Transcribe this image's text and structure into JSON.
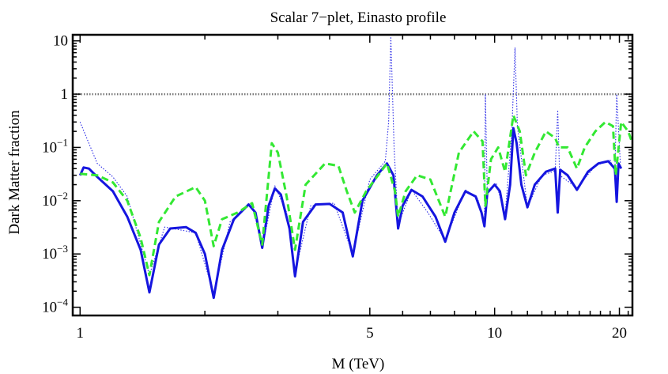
{
  "chart_data": {
    "type": "line",
    "title": "Scalar 7−plet, Einasto profile",
    "xlabel": "M (TeV)",
    "ylabel": "Dark Matter fraction",
    "xscale": "log",
    "yscale": "log",
    "xlim": [
      0.96,
      21.5
    ],
    "ylim": [
      7e-05,
      13
    ],
    "x_ticks": [
      {
        "value": 1,
        "label": "1"
      },
      {
        "value": 5,
        "label": "5"
      },
      {
        "value": 10,
        "label": "10"
      },
      {
        "value": 20,
        "label": "20"
      }
    ],
    "y_ticks": [
      {
        "value": 10,
        "base": "10",
        "exp": ""
      },
      {
        "value": 1,
        "base": "1",
        "exp": ""
      },
      {
        "value": 0.1,
        "base": "10",
        "exp": "−1"
      },
      {
        "value": 0.01,
        "base": "10",
        "exp": "−2"
      },
      {
        "value": 0.001,
        "base": "10",
        "exp": "−3"
      },
      {
        "value": 0.0001,
        "base": "10",
        "exp": "−4"
      }
    ],
    "series": [
      {
        "name": "reference (fraction = 1)",
        "color": "#777777",
        "style": "dotted",
        "points": [
          [
            0.96,
            1
          ],
          [
            21.5,
            1
          ]
        ]
      },
      {
        "name": "dotted blue",
        "color": "#2a2ae6",
        "style": "dotted",
        "points": [
          [
            1.0,
            0.3
          ],
          [
            1.1,
            0.05
          ],
          [
            1.2,
            0.028
          ],
          [
            1.3,
            0.012
          ],
          [
            1.47,
            0.0004
          ],
          [
            1.6,
            0.0032
          ],
          [
            1.9,
            0.0025
          ],
          [
            2.1,
            0.00018
          ],
          [
            2.3,
            0.004
          ],
          [
            2.6,
            0.009
          ],
          [
            2.75,
            0.0013
          ],
          [
            2.95,
            0.019
          ],
          [
            3.15,
            0.006
          ],
          [
            3.3,
            0.00045
          ],
          [
            3.6,
            0.008
          ],
          [
            4.1,
            0.009
          ],
          [
            4.55,
            0.001
          ],
          [
            5.0,
            0.025
          ],
          [
            5.45,
            0.055
          ],
          [
            5.55,
            0.3
          ],
          [
            5.62,
            12
          ],
          [
            5.72,
            0.1
          ],
          [
            5.85,
            0.0035
          ],
          [
            6.3,
            0.016
          ],
          [
            6.9,
            0.006
          ],
          [
            7.6,
            0.0018
          ],
          [
            8.5,
            0.016
          ],
          [
            9.1,
            0.011
          ],
          [
            9.45,
            0.0035
          ],
          [
            9.5,
            1.0
          ],
          [
            9.6,
            0.014
          ],
          [
            10.1,
            0.021
          ],
          [
            10.6,
            0.0052
          ],
          [
            11.0,
            0.2
          ],
          [
            11.2,
            7.5
          ],
          [
            11.35,
            0.25
          ],
          [
            12.0,
            0.0075
          ],
          [
            13.0,
            0.03
          ],
          [
            14.0,
            0.036
          ],
          [
            14.2,
            0.5
          ],
          [
            14.35,
            0.03
          ],
          [
            15.8,
            0.0175
          ],
          [
            17.5,
            0.045
          ],
          [
            19.0,
            0.058
          ],
          [
            19.5,
            0.035
          ],
          [
            19.7,
            1.0
          ],
          [
            20.1,
            0.05
          ]
        ]
      },
      {
        "name": "solid blue",
        "color": "#1515df",
        "style": "solid",
        "points": [
          [
            1.0,
            0.03
          ],
          [
            1.02,
            0.042
          ],
          [
            1.05,
            0.04
          ],
          [
            1.1,
            0.028
          ],
          [
            1.2,
            0.015
          ],
          [
            1.3,
            0.005
          ],
          [
            1.4,
            0.0012
          ],
          [
            1.47,
            0.00019
          ],
          [
            1.55,
            0.0015
          ],
          [
            1.65,
            0.003
          ],
          [
            1.8,
            0.0032
          ],
          [
            1.9,
            0.0025
          ],
          [
            2.0,
            0.001
          ],
          [
            2.1,
            0.00015
          ],
          [
            2.2,
            0.0012
          ],
          [
            2.35,
            0.0045
          ],
          [
            2.55,
            0.0085
          ],
          [
            2.65,
            0.006
          ],
          [
            2.75,
            0.0013
          ],
          [
            2.85,
            0.008
          ],
          [
            2.95,
            0.017
          ],
          [
            3.05,
            0.013
          ],
          [
            3.2,
            0.003
          ],
          [
            3.3,
            0.00038
          ],
          [
            3.45,
            0.004
          ],
          [
            3.7,
            0.0085
          ],
          [
            4.0,
            0.0087
          ],
          [
            4.3,
            0.006
          ],
          [
            4.55,
            0.0009
          ],
          [
            4.8,
            0.01
          ],
          [
            5.2,
            0.03
          ],
          [
            5.5,
            0.05
          ],
          [
            5.7,
            0.03
          ],
          [
            5.85,
            0.003
          ],
          [
            6.0,
            0.008
          ],
          [
            6.3,
            0.016
          ],
          [
            6.7,
            0.012
          ],
          [
            7.2,
            0.005
          ],
          [
            7.6,
            0.0017
          ],
          [
            8.0,
            0.006
          ],
          [
            8.5,
            0.015
          ],
          [
            9.0,
            0.012
          ],
          [
            9.3,
            0.006
          ],
          [
            9.45,
            0.0033
          ],
          [
            9.6,
            0.014
          ],
          [
            10.0,
            0.02
          ],
          [
            10.3,
            0.015
          ],
          [
            10.6,
            0.0045
          ],
          [
            10.9,
            0.02
          ],
          [
            11.1,
            0.23
          ],
          [
            11.3,
            0.12
          ],
          [
            11.6,
            0.02
          ],
          [
            12.0,
            0.0075
          ],
          [
            12.5,
            0.02
          ],
          [
            13.3,
            0.035
          ],
          [
            14.0,
            0.04
          ],
          [
            14.2,
            0.006
          ],
          [
            14.4,
            0.038
          ],
          [
            15.0,
            0.03
          ],
          [
            15.8,
            0.016
          ],
          [
            16.8,
            0.035
          ],
          [
            17.8,
            0.05
          ],
          [
            18.8,
            0.055
          ],
          [
            19.5,
            0.04
          ],
          [
            19.7,
            0.0095
          ],
          [
            19.9,
            0.05
          ],
          [
            20.2,
            0.04
          ]
        ]
      },
      {
        "name": "dashed green",
        "color": "#33e833",
        "style": "dashed",
        "points": [
          [
            1.0,
            0.032
          ],
          [
            1.1,
            0.03
          ],
          [
            1.2,
            0.022
          ],
          [
            1.3,
            0.01
          ],
          [
            1.4,
            0.002
          ],
          [
            1.47,
            0.0004
          ],
          [
            1.55,
            0.004
          ],
          [
            1.7,
            0.012
          ],
          [
            1.9,
            0.018
          ],
          [
            2.0,
            0.01
          ],
          [
            2.1,
            0.0014
          ],
          [
            2.2,
            0.0045
          ],
          [
            2.4,
            0.006
          ],
          [
            2.6,
            0.009
          ],
          [
            2.75,
            0.0015
          ],
          [
            2.9,
            0.12
          ],
          [
            3.0,
            0.08
          ],
          [
            3.15,
            0.012
          ],
          [
            3.3,
            0.0012
          ],
          [
            3.5,
            0.02
          ],
          [
            3.9,
            0.05
          ],
          [
            4.2,
            0.045
          ],
          [
            4.4,
            0.015
          ],
          [
            4.6,
            0.006
          ],
          [
            4.9,
            0.015
          ],
          [
            5.5,
            0.05
          ],
          [
            5.75,
            0.015
          ],
          [
            5.85,
            0.005
          ],
          [
            6.1,
            0.015
          ],
          [
            6.5,
            0.03
          ],
          [
            7.0,
            0.025
          ],
          [
            7.6,
            0.005
          ],
          [
            8.2,
            0.08
          ],
          [
            8.9,
            0.2
          ],
          [
            9.35,
            0.13
          ],
          [
            9.5,
            0.008
          ],
          [
            9.8,
            0.06
          ],
          [
            10.2,
            0.1
          ],
          [
            10.6,
            0.035
          ],
          [
            11.1,
            0.4
          ],
          [
            11.5,
            0.2
          ],
          [
            11.9,
            0.03
          ],
          [
            12.5,
            0.08
          ],
          [
            13.3,
            0.2
          ],
          [
            14.0,
            0.15
          ],
          [
            14.3,
            0.1
          ],
          [
            15.0,
            0.1
          ],
          [
            15.8,
            0.04
          ],
          [
            16.5,
            0.1
          ],
          [
            17.5,
            0.2
          ],
          [
            18.5,
            0.3
          ],
          [
            19.3,
            0.25
          ],
          [
            19.6,
            0.03
          ],
          [
            20.2,
            0.3
          ],
          [
            21.0,
            0.2
          ],
          [
            21.5,
            0.12
          ]
        ]
      }
    ]
  }
}
